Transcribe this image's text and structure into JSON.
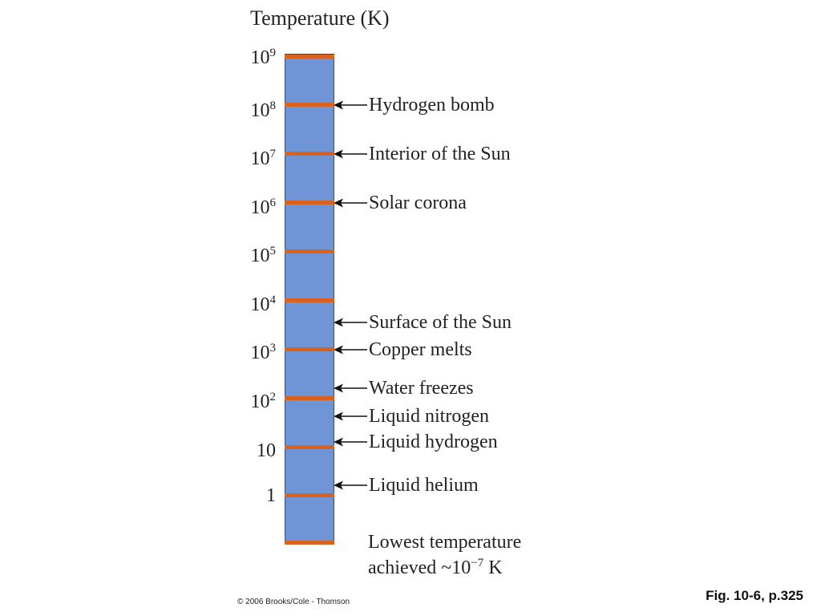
{
  "title": "Temperature (K)",
  "scale": {
    "ticks": [
      {
        "base": "10",
        "exp": "9"
      },
      {
        "base": "10",
        "exp": "8"
      },
      {
        "base": "10",
        "exp": "7"
      },
      {
        "base": "10",
        "exp": "6"
      },
      {
        "base": "10",
        "exp": "5"
      },
      {
        "base": "10",
        "exp": "4"
      },
      {
        "base": "10",
        "exp": "3"
      },
      {
        "base": "10",
        "exp": "2"
      },
      {
        "base": "10",
        "exp": ""
      },
      {
        "base": "1",
        "exp": ""
      }
    ]
  },
  "annotations": [
    {
      "label": "Hydrogen bomb"
    },
    {
      "label": "Interior of the Sun"
    },
    {
      "label": "Solar corona"
    },
    {
      "label": "Surface of the Sun"
    },
    {
      "label": "Copper melts"
    },
    {
      "label": "Water freezes"
    },
    {
      "label": "Liquid nitrogen"
    },
    {
      "label": "Liquid hydrogen"
    },
    {
      "label": "Liquid helium"
    }
  ],
  "lowest": {
    "line1": "Lowest temperature",
    "line2_prefix": "achieved ~10",
    "line2_exp": "−7",
    "line2_suffix": " K"
  },
  "footer": {
    "copyright": "© 2006 Brooks/Cole - Thomson",
    "figure_ref": "Fig. 10-6, p.325"
  },
  "colors": {
    "column_fill": "#6f95d6",
    "tick_color": "#d8621e"
  }
}
